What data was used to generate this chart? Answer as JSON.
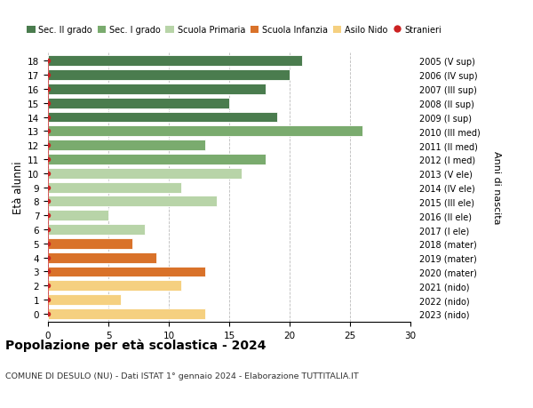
{
  "ages": [
    18,
    17,
    16,
    15,
    14,
    13,
    12,
    11,
    10,
    9,
    8,
    7,
    6,
    5,
    4,
    3,
    2,
    1,
    0
  ],
  "values": [
    21,
    20,
    18,
    15,
    19,
    26,
    13,
    18,
    16,
    11,
    14,
    5,
    8,
    7,
    9,
    13,
    11,
    6,
    13
  ],
  "right_labels": [
    "2005 (V sup)",
    "2006 (IV sup)",
    "2007 (III sup)",
    "2008 (II sup)",
    "2009 (I sup)",
    "2010 (III med)",
    "2011 (II med)",
    "2012 (I med)",
    "2013 (V ele)",
    "2014 (IV ele)",
    "2015 (III ele)",
    "2016 (II ele)",
    "2017 (I ele)",
    "2018 (mater)",
    "2019 (mater)",
    "2020 (mater)",
    "2021 (nido)",
    "2022 (nido)",
    "2023 (nido)"
  ],
  "bar_colors": [
    "#4a7c4e",
    "#4a7c4e",
    "#4a7c4e",
    "#4a7c4e",
    "#4a7c4e",
    "#7aab6e",
    "#7aab6e",
    "#7aab6e",
    "#b8d4a8",
    "#b8d4a8",
    "#b8d4a8",
    "#b8d4a8",
    "#b8d4a8",
    "#d9722a",
    "#d9722a",
    "#d9722a",
    "#f5d080",
    "#f5d080",
    "#f5d080"
  ],
  "stranieri_color": "#cc2222",
  "title": "Popolazione per età scolastica - 2024",
  "subtitle": "COMUNE DI DESULO (NU) - Dati ISTAT 1° gennaio 2024 - Elaborazione TUTTITALIA.IT",
  "ylabel": "Età alunni",
  "right_ylabel": "Anni di nascita",
  "xlim": [
    0,
    30
  ],
  "xticks": [
    0,
    5,
    10,
    15,
    20,
    25,
    30
  ],
  "legend_labels": [
    "Sec. II grado",
    "Sec. I grado",
    "Scuola Primaria",
    "Scuola Infanzia",
    "Asilo Nido",
    "Stranieri"
  ],
  "legend_colors": [
    "#4a7c4e",
    "#7aab6e",
    "#b8d4a8",
    "#d9722a",
    "#f5d080",
    "#cc2222"
  ],
  "background_color": "#ffffff",
  "grid_color": "#bbbbbb"
}
